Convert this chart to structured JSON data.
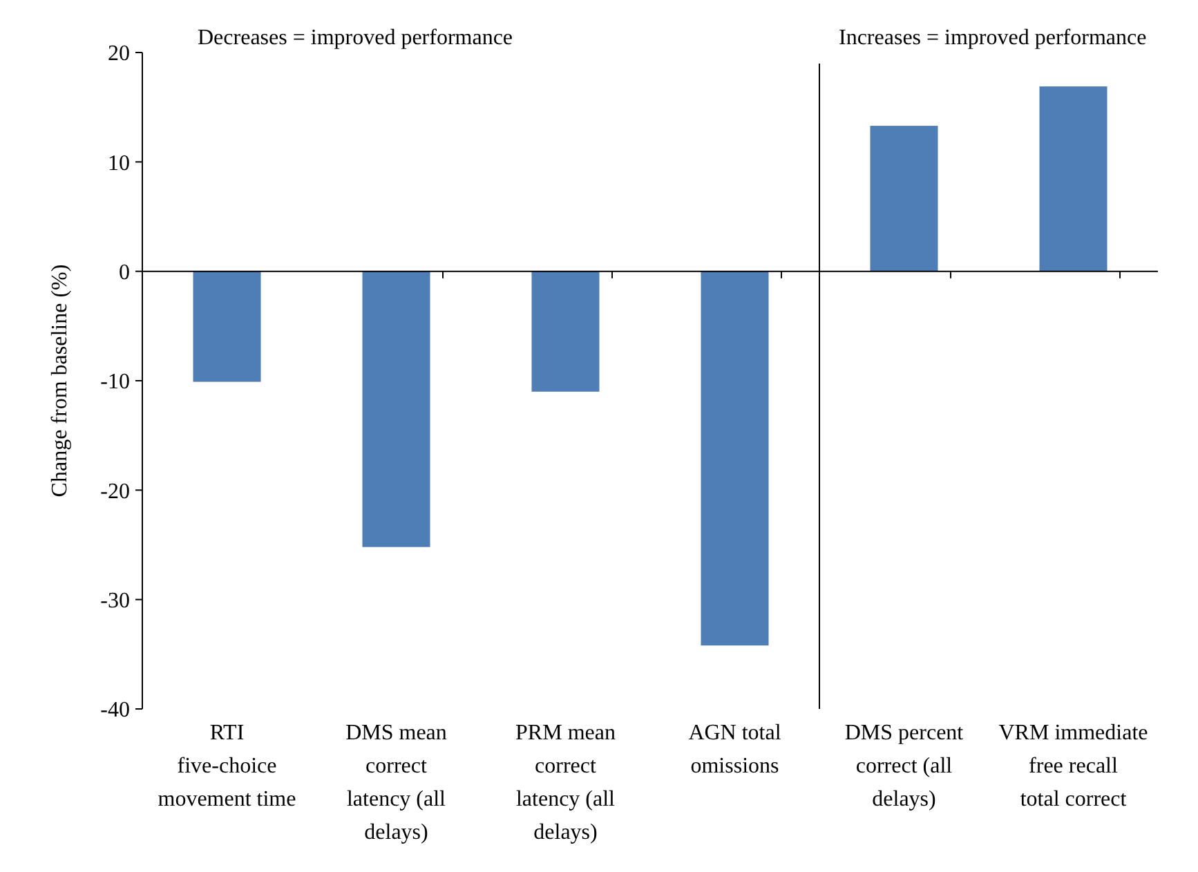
{
  "chart_data": {
    "type": "bar",
    "ylabel": "Change from baseline (%)",
    "categories": [
      "RTI five-choice movement time",
      "DMS mean correct latency (all delays)",
      "PRM mean correct latency (all delays)",
      "AGN total omissions",
      "DMS percent correct (all delays)",
      "VRM immediate free recall total correct"
    ],
    "values": [
      -10.1,
      -25.2,
      -11.0,
      -34.2,
      13.3,
      16.9
    ],
    "color": "#4f7db5",
    "ylim": [
      -40,
      20
    ],
    "yticks": [
      -40,
      -30,
      -20,
      -10,
      0,
      10,
      20
    ],
    "annotations": [
      "Decreases = improved performance",
      "Increases = improved performance"
    ]
  }
}
